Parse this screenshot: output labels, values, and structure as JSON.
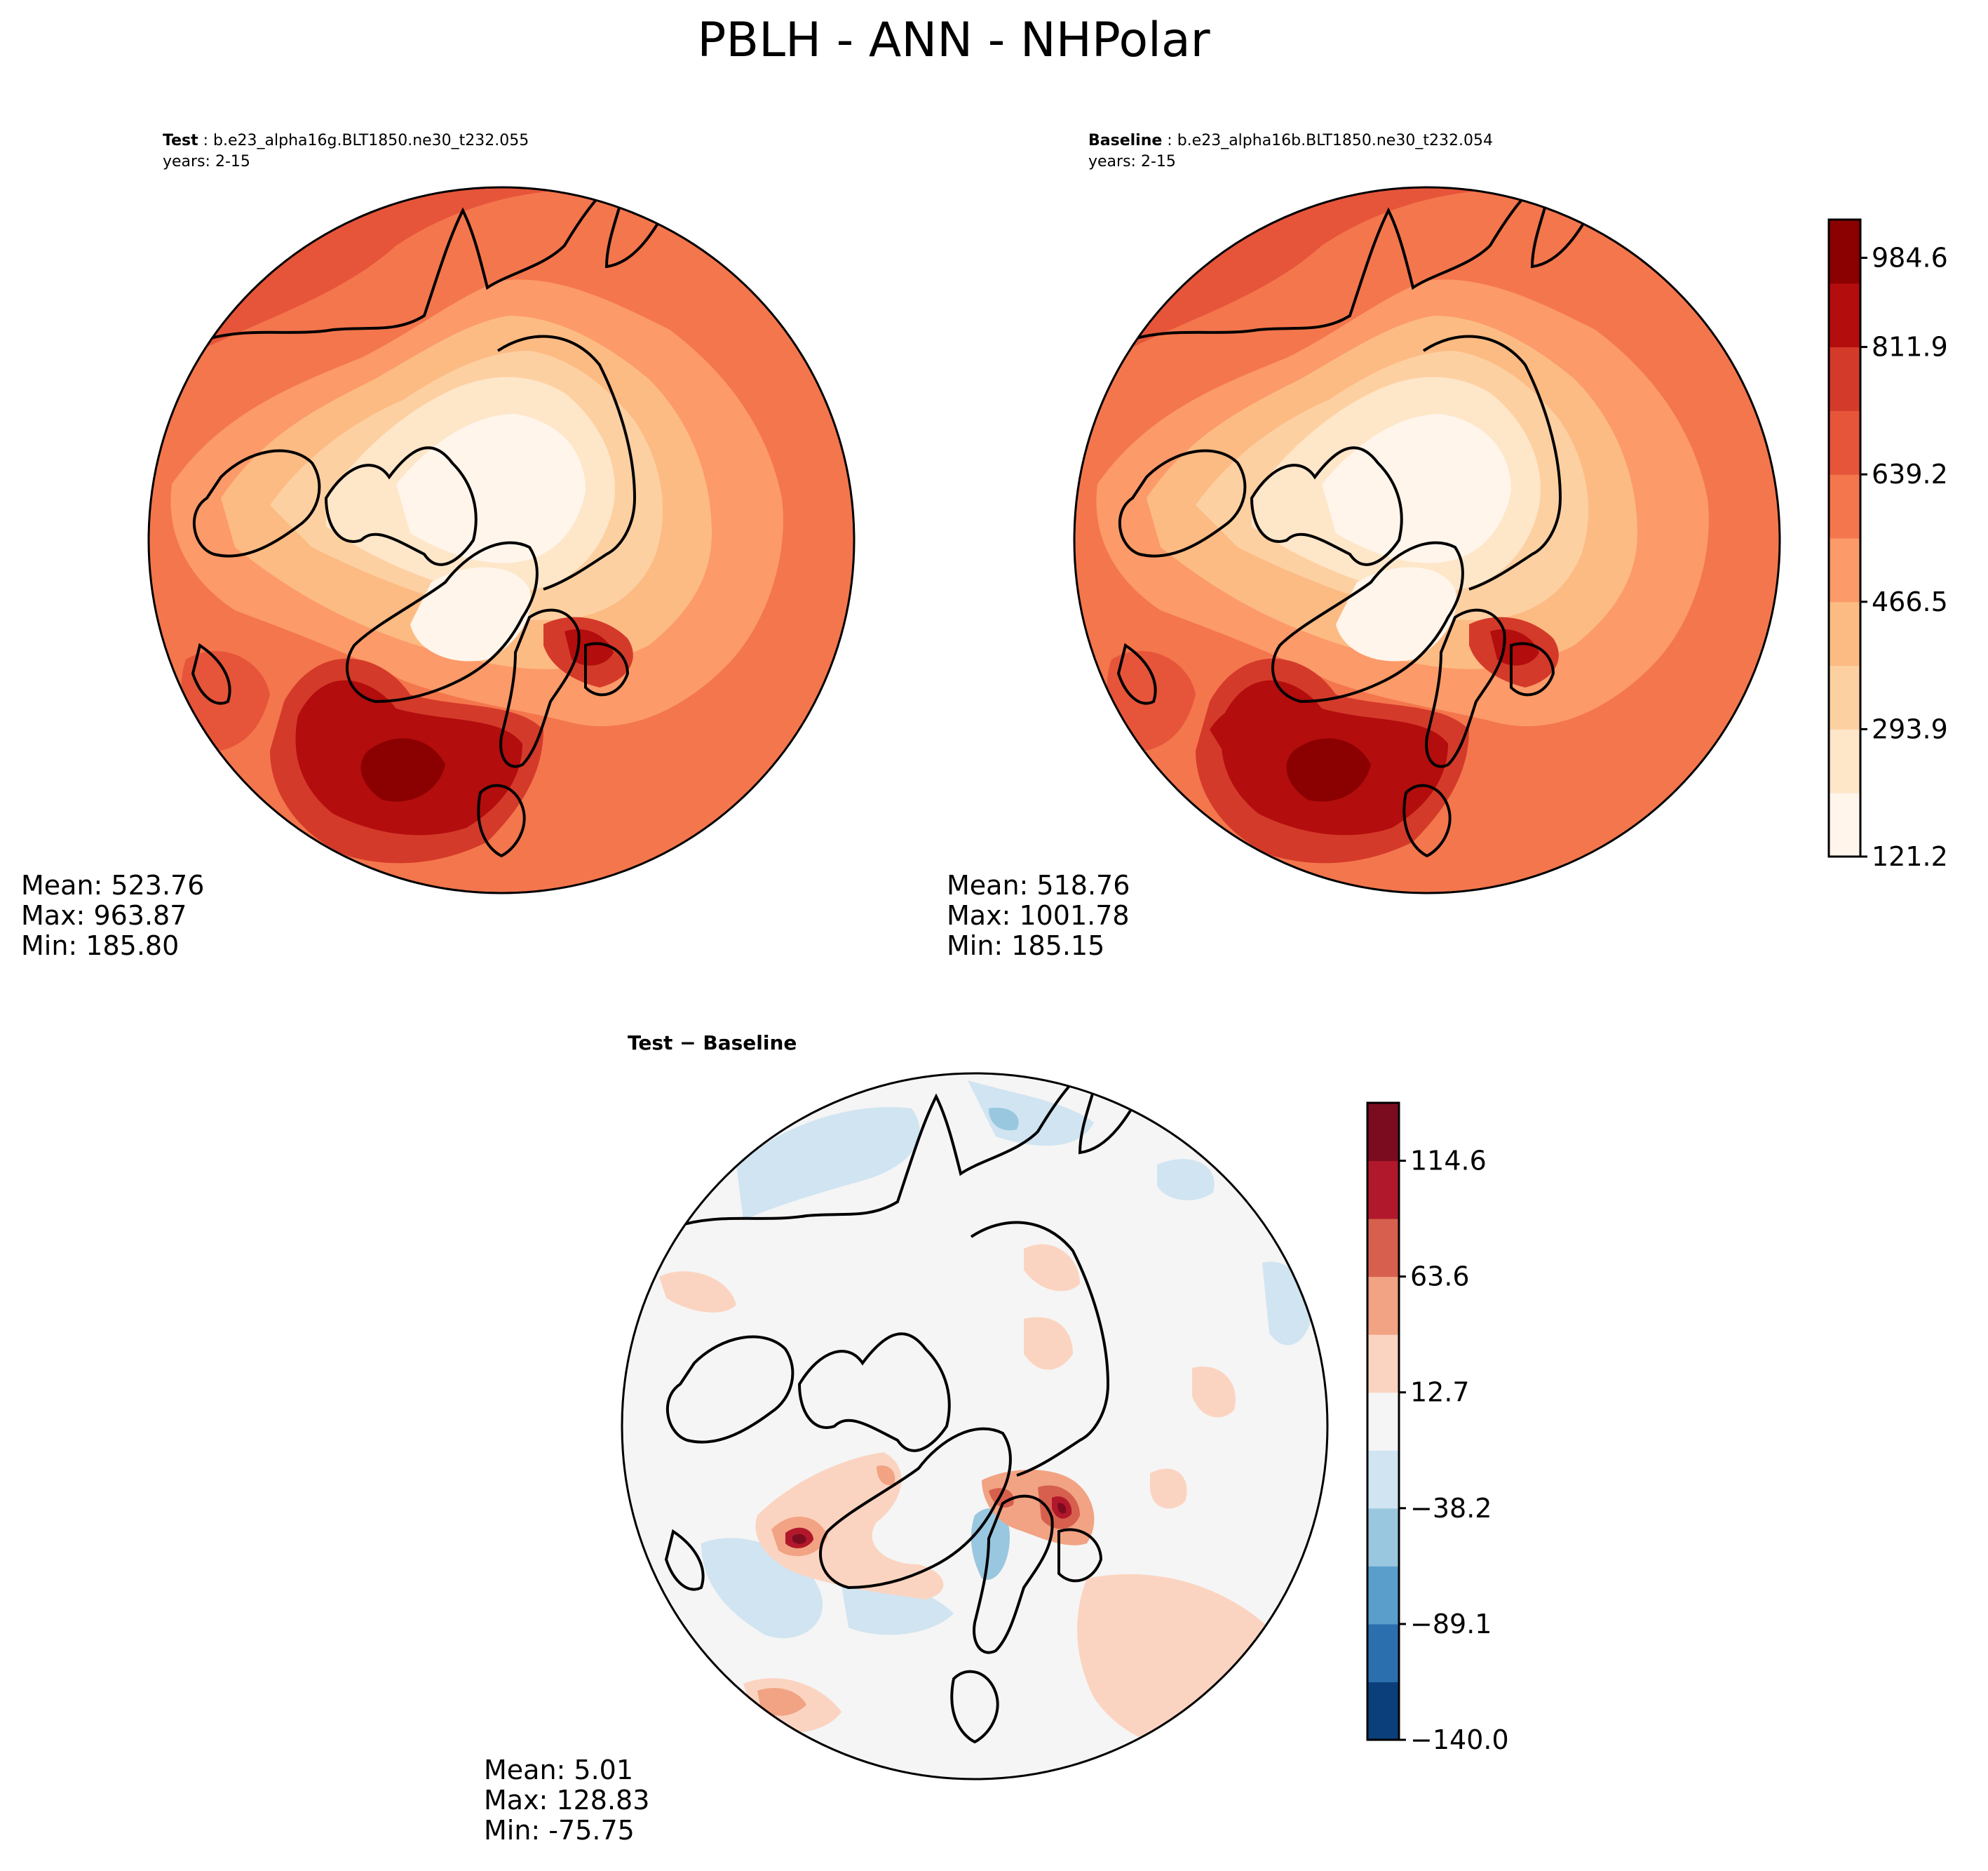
{
  "figure": {
    "title": "PBLH - ANN - NHPolar"
  },
  "panels": {
    "test": {
      "label": "Test",
      "case": "b.e23_alpha16g.BLT1850.ne30_t232.055",
      "years": "years: 2-15",
      "stats": {
        "mean": "Mean: 523.76",
        "max": "Max: 963.87",
        "min": "Min: 185.80"
      }
    },
    "baseline": {
      "label": "Baseline",
      "case": "b.e23_alpha16b.BLT1850.ne30_t232.054",
      "years": "years: 2-15",
      "stats": {
        "mean": "Mean: 518.76",
        "max": "Max: 1001.78",
        "min": "Min: 185.15"
      }
    },
    "diff": {
      "label_a": "Test",
      "label_sep": " − ",
      "label_b": "Baseline",
      "stats": {
        "mean": "Mean:  5.01",
        "max": "Max: 128.83",
        "min": "Min: -75.75"
      }
    }
  },
  "colorbars": {
    "main": {
      "ticks": [
        "121.2",
        "293.9",
        "466.5",
        "639.2",
        "811.9",
        "984.6"
      ],
      "colors": [
        "#fff5eb",
        "#fee6c9",
        "#fdd0a2",
        "#fdbb84",
        "#fc9a69",
        "#f4764d",
        "#e6553a",
        "#d43a2a",
        "#b30d0d",
        "#8b0000"
      ]
    },
    "diff": {
      "ticks": [
        "−140.0",
        "−89.1",
        "−38.2",
        "12.7",
        "63.6",
        "114.6"
      ],
      "colors": [
        "#0b3f7b",
        "#2c6fae",
        "#5a9fcc",
        "#99c7e0",
        "#d0e4f1",
        "#f5f5f5",
        "#fbd4c1",
        "#f2a383",
        "#d6604d",
        "#b2182b",
        "#7b0c20"
      ]
    }
  }
}
